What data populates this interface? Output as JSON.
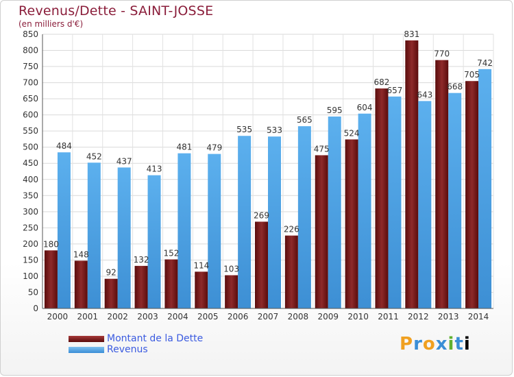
{
  "header": {
    "title": "Revenus/Dette - SAINT-JOSSE",
    "subtitle": "(en milliers d'€)"
  },
  "legend": {
    "items": [
      {
        "label": "Montant de la Dette",
        "color": "#6b1416"
      },
      {
        "label": "Revenus",
        "color": "#4aa3e6"
      }
    ]
  },
  "logo": {
    "text": "Proxiti"
  },
  "chart_data": {
    "type": "bar",
    "title": "Revenus/Dette - SAINT-JOSSE",
    "subtitle": "(en milliers d'€)",
    "xlabel": "",
    "ylabel": "",
    "ylim": [
      0,
      850
    ],
    "yticks": [
      0,
      50,
      100,
      150,
      200,
      250,
      300,
      350,
      400,
      450,
      500,
      550,
      600,
      650,
      700,
      750,
      800,
      850
    ],
    "grid": true,
    "legend_position": "bottom-left",
    "categories": [
      "2000",
      "2001",
      "2002",
      "2003",
      "2004",
      "2005",
      "2006",
      "2007",
      "2008",
      "2009",
      "2010",
      "2011",
      "2012",
      "2013",
      "2014"
    ],
    "series": [
      {
        "name": "Montant de la Dette",
        "color": "#6b1416",
        "values": [
          180,
          148,
          92,
          132,
          152,
          114,
          103,
          269,
          226,
          475,
          524,
          682,
          831,
          770,
          705
        ]
      },
      {
        "name": "Revenus",
        "color": "#4aa3e6",
        "values": [
          484,
          452,
          437,
          413,
          481,
          479,
          535,
          533,
          565,
          595,
          604,
          657,
          643,
          668,
          742
        ]
      }
    ]
  }
}
